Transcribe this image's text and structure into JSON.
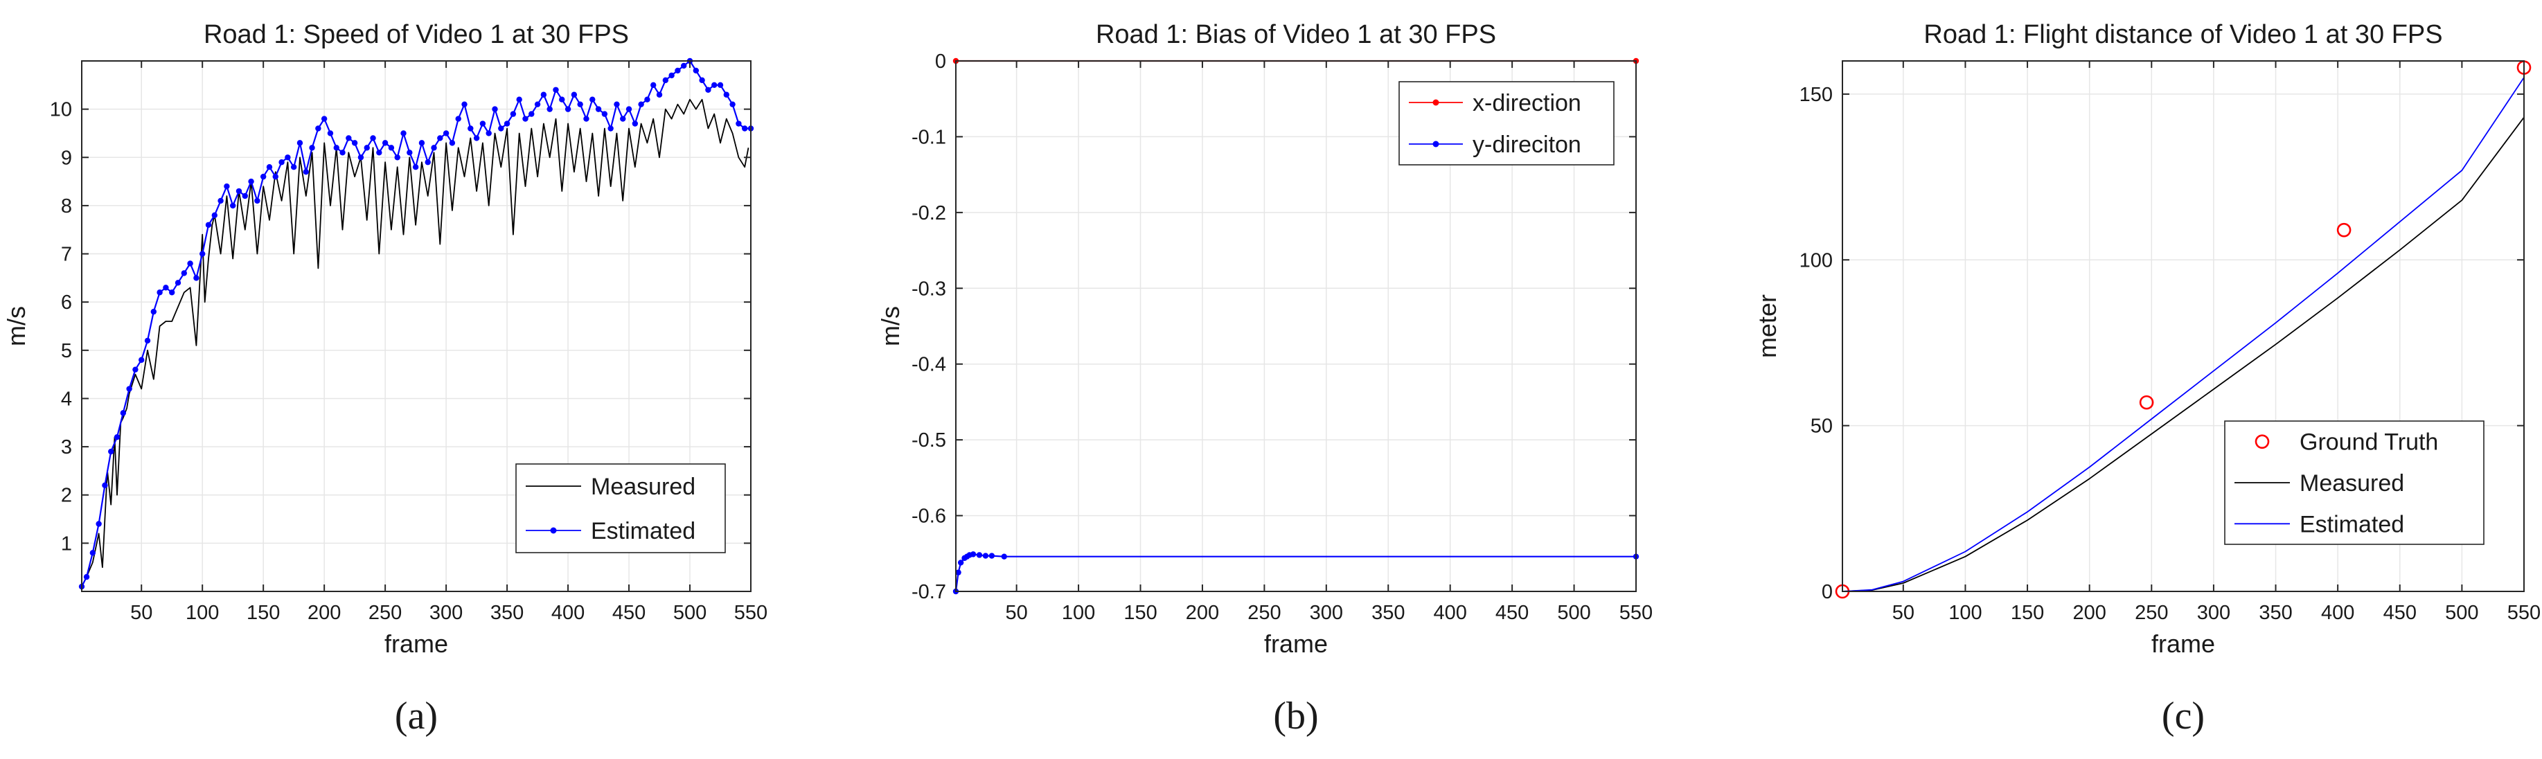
{
  "colors": {
    "blue": "#0000ff",
    "red": "#ff0000",
    "black": "#000000",
    "grid": "#e6e6e6",
    "axis": "#262626"
  },
  "chart_data": [
    {
      "panel": "(a)",
      "type": "line",
      "title": "Road 1: Speed of Video 1 at 30 FPS",
      "xlabel": "frame",
      "ylabel": "m/s",
      "xlim": [
        1,
        550
      ],
      "ylim": [
        0,
        11
      ],
      "xticks": [
        50,
        100,
        150,
        200,
        250,
        300,
        350,
        400,
        450,
        500,
        550
      ],
      "yticks": [
        1,
        2,
        3,
        4,
        5,
        6,
        7,
        8,
        9,
        10
      ],
      "grid": true,
      "legend_position": "bottom-right",
      "series": [
        {
          "name": "Measured",
          "color": "#000000",
          "marker": "none",
          "x": [
            1,
            5,
            10,
            15,
            18,
            20,
            22,
            25,
            28,
            30,
            33,
            35,
            38,
            40,
            45,
            50,
            55,
            60,
            65,
            70,
            75,
            80,
            85,
            90,
            95,
            100,
            102,
            105,
            108,
            110,
            115,
            120,
            125,
            130,
            135,
            140,
            145,
            150,
            155,
            160,
            165,
            170,
            175,
            180,
            185,
            190,
            195,
            200,
            205,
            210,
            215,
            220,
            225,
            230,
            235,
            240,
            245,
            250,
            255,
            260,
            265,
            270,
            275,
            280,
            285,
            290,
            295,
            300,
            305,
            310,
            315,
            320,
            325,
            330,
            335,
            340,
            345,
            350,
            355,
            360,
            365,
            370,
            375,
            380,
            385,
            390,
            395,
            400,
            405,
            410,
            415,
            420,
            425,
            430,
            435,
            440,
            445,
            450,
            455,
            460,
            465,
            470,
            475,
            480,
            485,
            490,
            495,
            500,
            505,
            510,
            515,
            520,
            525,
            530,
            535,
            540,
            545,
            548
          ],
          "values": [
            0.1,
            0.3,
            0.6,
            1.2,
            0.5,
            1.5,
            2.5,
            1.8,
            3.2,
            2.0,
            3.5,
            3.6,
            3.8,
            4.1,
            4.5,
            4.2,
            5.0,
            4.4,
            5.5,
            5.6,
            5.6,
            5.9,
            6.2,
            6.3,
            5.1,
            7.4,
            6.0,
            6.9,
            7.6,
            7.8,
            7.0,
            8.2,
            6.9,
            8.3,
            7.5,
            8.5,
            7.0,
            8.4,
            7.7,
            8.7,
            8.1,
            8.9,
            7.0,
            9.0,
            8.2,
            9.1,
            6.7,
            9.3,
            8.0,
            9.2,
            7.5,
            9.1,
            8.6,
            9.0,
            7.7,
            9.2,
            7.0,
            8.9,
            7.5,
            8.8,
            7.4,
            9.0,
            7.6,
            8.9,
            8.2,
            9.1,
            7.2,
            9.3,
            7.9,
            9.2,
            8.6,
            9.4,
            8.3,
            9.3,
            8.0,
            9.5,
            8.8,
            9.6,
            7.4,
            9.5,
            8.4,
            9.6,
            8.6,
            9.7,
            9.0,
            9.8,
            8.3,
            9.7,
            8.7,
            9.6,
            8.5,
            9.5,
            8.2,
            9.6,
            8.4,
            9.5,
            8.1,
            9.6,
            8.8,
            9.7,
            9.3,
            9.8,
            9.0,
            10.0,
            9.8,
            10.1,
            9.9,
            10.2,
            10.0,
            10.2,
            9.6,
            9.9,
            9.3,
            9.8,
            9.5,
            9.0,
            8.8,
            9.2
          ]
        },
        {
          "name": "Estimated",
          "color": "#0000ff",
          "marker": "dot",
          "x": [
            1,
            5,
            10,
            15,
            20,
            25,
            30,
            35,
            40,
            45,
            50,
            55,
            60,
            65,
            70,
            75,
            80,
            85,
            90,
            95,
            100,
            105,
            110,
            115,
            120,
            125,
            130,
            135,
            140,
            145,
            150,
            155,
            160,
            165,
            170,
            175,
            180,
            185,
            190,
            195,
            200,
            205,
            210,
            215,
            220,
            225,
            230,
            235,
            240,
            245,
            250,
            255,
            260,
            265,
            270,
            275,
            280,
            285,
            290,
            295,
            300,
            305,
            310,
            315,
            320,
            325,
            330,
            335,
            340,
            345,
            350,
            355,
            360,
            365,
            370,
            375,
            380,
            385,
            390,
            395,
            400,
            405,
            410,
            415,
            420,
            425,
            430,
            435,
            440,
            445,
            450,
            455,
            460,
            465,
            470,
            475,
            480,
            485,
            490,
            495,
            500,
            505,
            510,
            515,
            520,
            525,
            530,
            535,
            540,
            545,
            550
          ],
          "values": [
            0.1,
            0.3,
            0.8,
            1.4,
            2.2,
            2.9,
            3.2,
            3.7,
            4.2,
            4.6,
            4.8,
            5.2,
            5.8,
            6.2,
            6.3,
            6.2,
            6.4,
            6.6,
            6.8,
            6.5,
            7.0,
            7.6,
            7.8,
            8.1,
            8.4,
            8.0,
            8.3,
            8.2,
            8.5,
            8.1,
            8.6,
            8.8,
            8.6,
            8.9,
            9.0,
            8.8,
            9.3,
            8.7,
            9.2,
            9.6,
            9.8,
            9.5,
            9.2,
            9.1,
            9.4,
            9.3,
            9.0,
            9.2,
            9.4,
            9.1,
            9.3,
            9.2,
            9.0,
            9.5,
            9.1,
            8.8,
            9.3,
            8.9,
            9.2,
            9.4,
            9.5,
            9.3,
            9.8,
            10.1,
            9.6,
            9.4,
            9.7,
            9.5,
            10.0,
            9.6,
            9.7,
            9.9,
            10.2,
            9.8,
            9.9,
            10.1,
            10.3,
            10.0,
            10.4,
            10.2,
            10.0,
            10.3,
            10.1,
            9.8,
            10.2,
            10.0,
            9.9,
            9.6,
            10.1,
            9.8,
            10.0,
            9.7,
            10.1,
            10.2,
            10.5,
            10.3,
            10.6,
            10.7,
            10.8,
            10.9,
            11.0,
            10.8,
            10.6,
            10.4,
            10.5,
            10.5,
            10.3,
            10.1,
            9.7,
            9.6,
            9.6
          ]
        }
      ]
    },
    {
      "panel": "(b)",
      "type": "line",
      "title": "Road 1: Bias of Video 1 at 30 FPS",
      "xlabel": "frame",
      "ylabel": "m/s",
      "xlim": [
        1,
        550
      ],
      "ylim": [
        -0.7,
        0
      ],
      "xticks": [
        50,
        100,
        150,
        200,
        250,
        300,
        350,
        400,
        450,
        500,
        550
      ],
      "yticks": [
        0,
        -0.1,
        -0.2,
        -0.3,
        -0.4,
        -0.5,
        -0.6,
        -0.7
      ],
      "grid": true,
      "legend_position": "top-right",
      "series": [
        {
          "name": "x-direction",
          "color": "#ff0000",
          "marker": "dot",
          "x": [
            1,
            550
          ],
          "values": [
            0,
            0
          ]
        },
        {
          "name": "y-direciton",
          "color": "#0000ff",
          "marker": "dot",
          "x": [
            1,
            3,
            5,
            8,
            10,
            12,
            15,
            20,
            25,
            30,
            40,
            550
          ],
          "values": [
            -0.7,
            -0.675,
            -0.662,
            -0.656,
            -0.654,
            -0.652,
            -0.651,
            -0.652,
            -0.653,
            -0.653,
            -0.654,
            -0.654
          ]
        }
      ]
    },
    {
      "panel": "(c)",
      "type": "line",
      "title": "Road 1: Flight distance of Video 1 at 30 FPS",
      "xlabel": "frame",
      "ylabel": "meter",
      "xlim": [
        1,
        550
      ],
      "ylim": [
        0,
        160
      ],
      "xticks": [
        50,
        100,
        150,
        200,
        250,
        300,
        350,
        400,
        450,
        500,
        550
      ],
      "yticks": [
        0,
        50,
        100,
        150
      ],
      "grid": true,
      "legend_position": "bottom-right",
      "series": [
        {
          "name": "Ground Truth",
          "color": "#ff0000",
          "marker": "open-circle",
          "x": [
            1,
            246,
            405,
            550
          ],
          "values": [
            0,
            57,
            109,
            158
          ]
        },
        {
          "name": "Measured",
          "color": "#000000",
          "marker": "none",
          "x": [
            1,
            25,
            50,
            100,
            150,
            200,
            250,
            300,
            350,
            400,
            450,
            500,
            550
          ],
          "values": [
            0,
            0.4,
            2.5,
            10.5,
            21.5,
            34.0,
            47.5,
            61.0,
            74.5,
            88.5,
            103.0,
            118.0,
            143.0
          ]
        },
        {
          "name": "Estimated",
          "color": "#0000ff",
          "marker": "none",
          "x": [
            1,
            25,
            50,
            100,
            150,
            200,
            250,
            300,
            350,
            400,
            450,
            500,
            550
          ],
          "values": [
            0,
            0.5,
            3.0,
            12.0,
            24.0,
            37.5,
            52.0,
            66.5,
            81.0,
            96.0,
            111.5,
            127.0,
            155.0
          ]
        }
      ]
    }
  ]
}
